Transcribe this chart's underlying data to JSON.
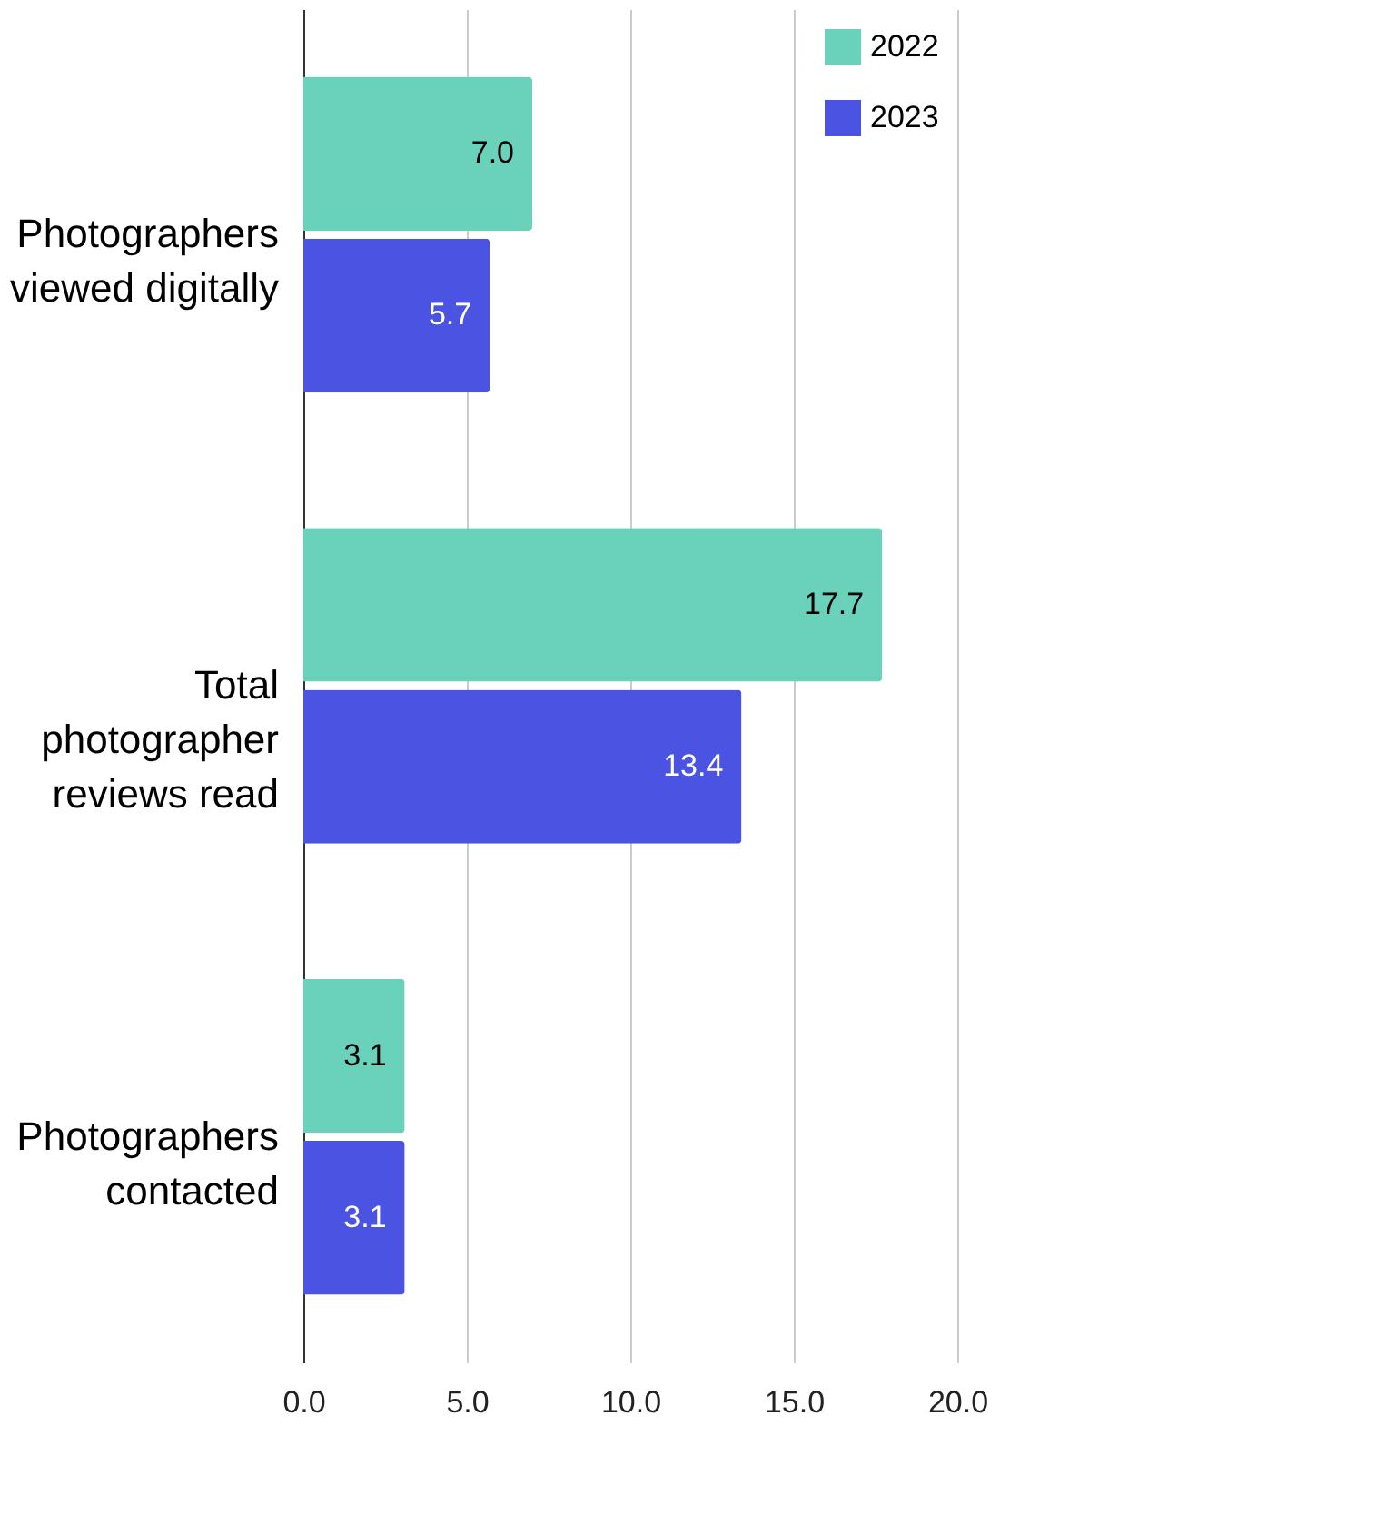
{
  "chart_data": {
    "type": "bar",
    "orientation": "horizontal",
    "categories": [
      "Photographers\nviewed digitally",
      "Total\nphotographer\nreviews read",
      "Photographers\ncontacted"
    ],
    "series": [
      {
        "name": "2022",
        "color": "#6ad1bb",
        "values": [
          7.0,
          17.7,
          3.1
        ],
        "value_labels": [
          "7.0",
          "17.7",
          "3.1"
        ]
      },
      {
        "name": "2023",
        "color": "#4b53e2",
        "values": [
          5.7,
          13.4,
          3.1
        ],
        "value_labels": [
          "5.7",
          "13.4",
          "3.1"
        ]
      }
    ],
    "xlim": [
      0,
      20
    ],
    "xticks": [
      {
        "value": 0,
        "label": "0.0"
      },
      {
        "value": 5,
        "label": "5.0"
      },
      {
        "value": 10,
        "label": "10.0"
      },
      {
        "value": 15,
        "label": "15.0"
      },
      {
        "value": 20,
        "label": "20.0"
      }
    ],
    "grid": "x",
    "legend": "top right"
  }
}
